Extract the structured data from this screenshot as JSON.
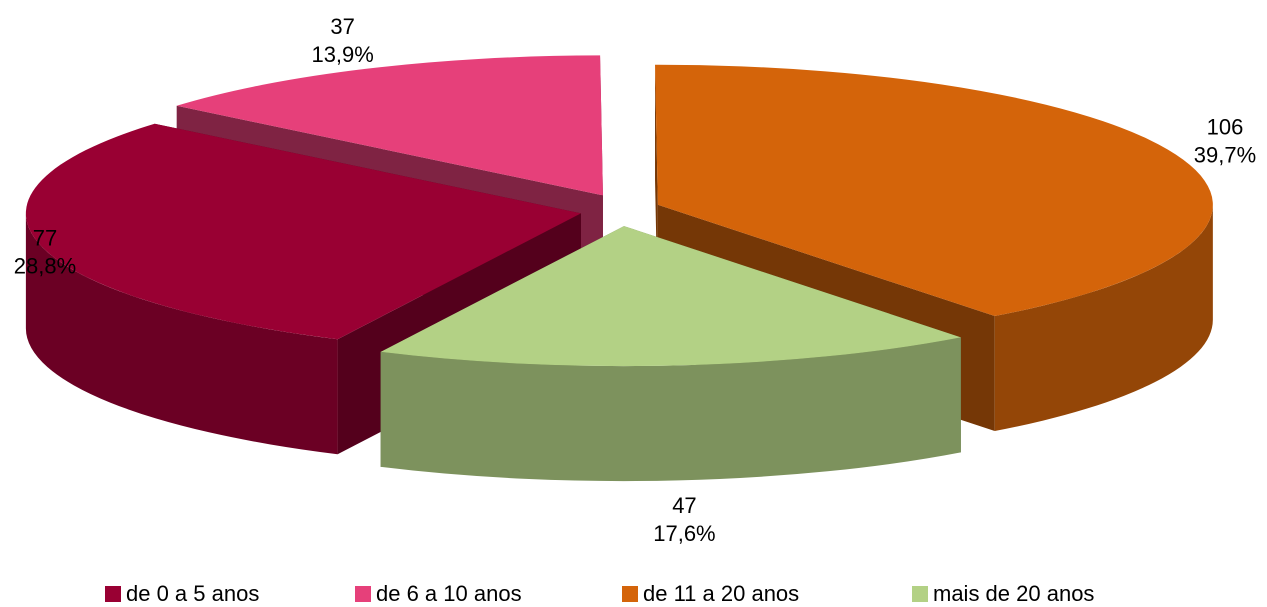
{
  "chart_data": {
    "type": "pie3d",
    "categories": [
      "de 0 a 5 anos",
      "de 6 a 10 anos",
      "de 11 a 20 anos",
      "mais de 20 anos"
    ],
    "values": [
      77,
      37,
      106,
      47
    ],
    "percentages": [
      28.8,
      13.9,
      39.7,
      17.6
    ],
    "percentage_labels": [
      "28,8%",
      "13,9%",
      "39,7%",
      "17,6%"
    ],
    "colors": [
      "#990033",
      "#e6407a",
      "#d4640a",
      "#b3d185"
    ],
    "legend": "bottom"
  }
}
